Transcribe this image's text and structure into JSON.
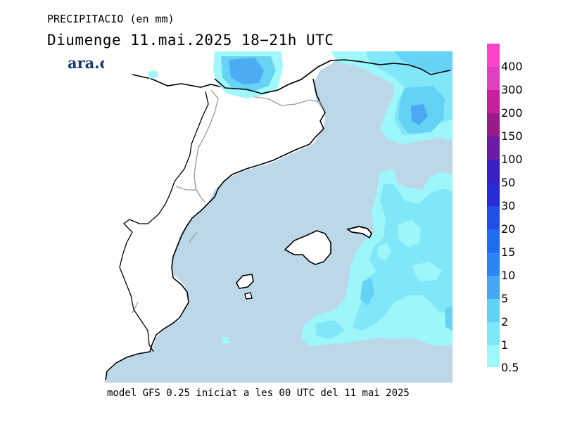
{
  "header": {
    "title": "PRECIPITACIO (en mm)",
    "subtitle": "Diumenge  11.mai.2025 18−21h UTC",
    "logo": "ara.cat"
  },
  "footer": {
    "caption": "model GFS 0.25 iniciat a les 00 UTC del 11 mai 2025"
  },
  "legend": {
    "labels": [
      "400",
      "300",
      "200",
      "150",
      "100",
      "50",
      "30",
      "20",
      "15",
      "10",
      "5",
      "2",
      "1",
      "0.5"
    ],
    "colors": [
      "#ff44cc",
      "#e040c0",
      "#c8209c",
      "#9a1a8a",
      "#6c1aa8",
      "#3a1fc4",
      "#2a2bd8",
      "#1f4fe6",
      "#1f6cf0",
      "#2a86f4",
      "#43a8f4",
      "#5fd2f6",
      "#7de8fa",
      "#9cf8fc"
    ]
  },
  "map": {
    "sea_color": "#bcd8e8",
    "land_color": "#ffffff",
    "precip_colors": {
      "light": "#9cf8fc",
      "medium": "#7de8fa",
      "heavy": "#5fd2f6",
      "max": "#43a8f4"
    }
  }
}
